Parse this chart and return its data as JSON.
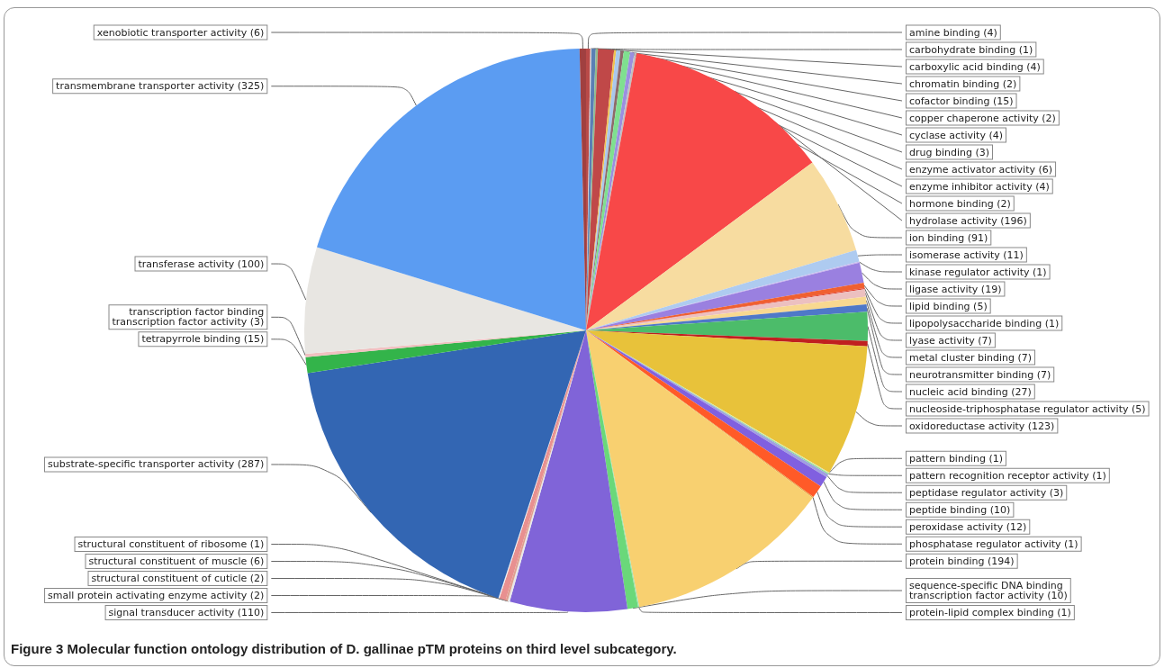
{
  "chart_data": {
    "type": "pie",
    "title": "Figure 3 Molecular function ontology distribution of D. gallinae pTM proteins on third level subcategory.",
    "categories": [
      "amine binding (4)",
      "carbohydrate binding (1)",
      "carboxylic acid binding (4)",
      "chromatin binding (2)",
      "cofactor binding (15)",
      "copper chaperone activity (2)",
      "cyclase activity (4)",
      "drug binding (3)",
      "enzyme activator activity (6)",
      "enzyme inhibitor activity (4)",
      "hormone binding (2)",
      "hydrolase activity (196)",
      "ion binding (91)",
      "isomerase activity (11)",
      "kinase regulator activity (1)",
      "ligase activity (19)",
      "lipid binding (5)",
      "lipopolysaccharide binding (1)",
      "lyase activity (7)",
      "metal cluster binding (7)",
      "neurotransmitter binding (7)",
      "nucleic acid binding (27)",
      "nucleoside-triphosphatase regulator activity (5)",
      "oxidoreductase activity (123)",
      "pattern binding (1)",
      "pattern recognition receptor activity (1)",
      "peptidase regulator activity (3)",
      "peptide binding (10)",
      "peroxidase activity (12)",
      "phosphatase regulator activity (1)",
      "protein binding (194)",
      "protein-lipid complex binding (1)",
      "sequence-specific DNA binding transcription factor activity (10)",
      "signal transducer activity (110)",
      "small protein activating enzyme activity (2)",
      "structural constituent of cuticle (2)",
      "structural constituent of muscle (6)",
      "structural constituent of ribosome (1)",
      "substrate-specific transporter activity (287)",
      "tetrapyrrole binding (15)",
      "transcription factor binding transcription factor activity (3)",
      "transferase activity (100)",
      "transmembrane transporter activity (325)",
      "xenobiotic transporter activity (6)"
    ],
    "values": [
      4,
      1,
      4,
      2,
      15,
      2,
      4,
      3,
      6,
      4,
      2,
      196,
      91,
      11,
      1,
      19,
      5,
      1,
      7,
      7,
      7,
      27,
      5,
      123,
      1,
      1,
      3,
      10,
      12,
      1,
      194,
      1,
      10,
      110,
      2,
      2,
      6,
      1,
      287,
      15,
      3,
      100,
      325,
      6
    ],
    "colors": [
      "#b94a48",
      "#d9d9d9",
      "#5b7fb5",
      "#8fbc8f",
      "#c04848",
      "#f2c14e",
      "#a9c8ec",
      "#8e6a6a",
      "#7fe08f",
      "#9b8fe0",
      "#c0c0c0",
      "#f84848",
      "#f7dca0",
      "#aecbf0",
      "#c9b8ee",
      "#9a80e0",
      "#f06030",
      "#e04030",
      "#ecc0c0",
      "#f8d890",
      "#4f78c8",
      "#4cbc6a",
      "#c02020",
      "#e8c23a",
      "#e0e0a0",
      "#7fe08f",
      "#a0a0e0",
      "#8060e0",
      "#ff5a28",
      "#e8a040",
      "#f8d070",
      "#a0e0b0",
      "#6ad87a",
      "#8064d8",
      "#e8e8e8",
      "#e0a090",
      "#e89090",
      "#f0f0f0",
      "#3366b3",
      "#33b44a",
      "#f0c0c0",
      "#e8e6e2",
      "#5b9cf2",
      "#a04040"
    ]
  }
}
